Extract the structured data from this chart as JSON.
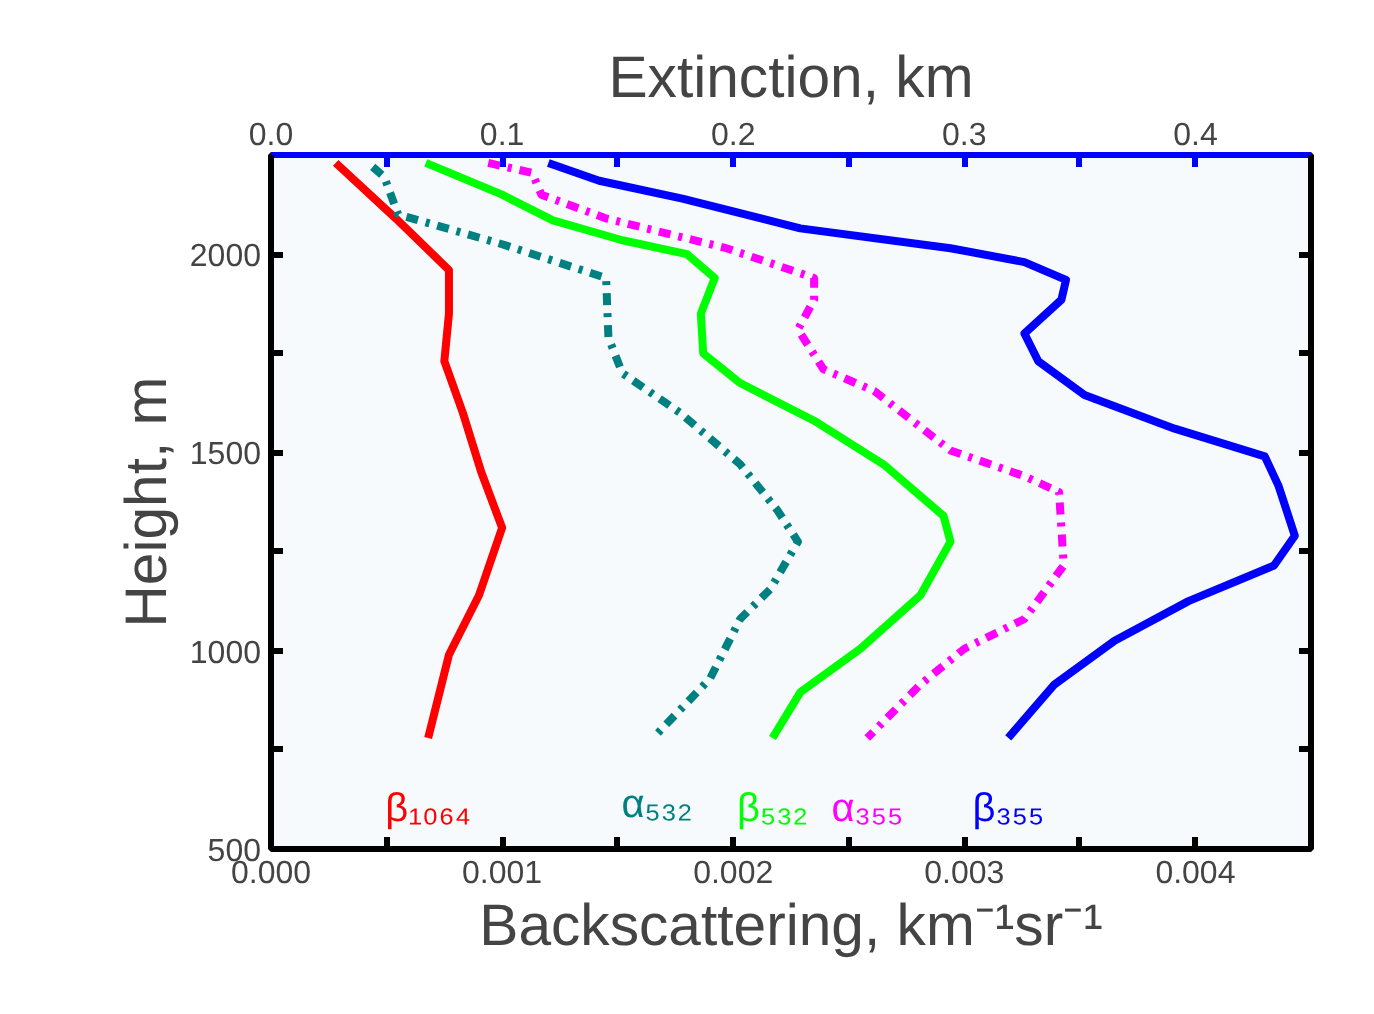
{
  "chart_data": {
    "type": "line",
    "xlabel": "Backscattering, km⁻¹sr⁻¹",
    "ylabel": "Height, m",
    "x2label": "Extinction, km",
    "xlim": [
      0,
      0.0045
    ],
    "x2lim": [
      0,
      0.45
    ],
    "ylim": [
      500,
      2250
    ],
    "xticks": [
      {
        "value": 0,
        "label": "0.000"
      },
      {
        "value": 0.0005,
        "label": null
      },
      {
        "value": 0.001,
        "label": "0.001"
      },
      {
        "value": 0.0015,
        "label": null
      },
      {
        "value": 0.002,
        "label": "0.002"
      },
      {
        "value": 0.0025,
        "label": null
      },
      {
        "value": 0.003,
        "label": "0.003"
      },
      {
        "value": 0.0035,
        "label": null
      },
      {
        "value": 0.004,
        "label": "0.004"
      }
    ],
    "x2ticks": [
      {
        "value": 0,
        "label": "0.0"
      },
      {
        "value": 0.05,
        "label": null
      },
      {
        "value": 0.1,
        "label": "0.1"
      },
      {
        "value": 0.15,
        "label": null
      },
      {
        "value": 0.2,
        "label": "0.2"
      },
      {
        "value": 0.25,
        "label": null
      },
      {
        "value": 0.3,
        "label": "0.3"
      },
      {
        "value": 0.35,
        "label": null
      },
      {
        "value": 0.4,
        "label": "0.4"
      }
    ],
    "yticks": [
      500,
      {
        "value": 750,
        "label": null
      },
      1000,
      {
        "value": 1250,
        "label": null
      },
      1500,
      {
        "value": 1750,
        "label": null
      },
      2000
    ],
    "grid": false,
    "marker": "none",
    "series": [
      {
        "name": "β₁₀₆₄",
        "color": "#ff0000",
        "line_style": "solid",
        "x": [
          0.00028,
          0.00054,
          0.00077,
          0.00077,
          0.00075,
          0.00083,
          0.00091,
          0.001,
          0.0009,
          0.00077,
          0.00068
        ],
        "values": [
          2230,
          2090,
          1960,
          1850,
          1730,
          1600,
          1450,
          1310,
          1140,
          990,
          780
        ]
      },
      {
        "name": "α₅₃₂",
        "color": "#008080",
        "line_style": "dashdot",
        "axis": "x2",
        "x": [
          0.044,
          0.049,
          0.055,
          0.1,
          0.145,
          0.146,
          0.152,
          0.177,
          0.203,
          0.219,
          0.228,
          0.216,
          0.203,
          0.19,
          0.167
        ],
        "values": [
          2220,
          2195,
          2100,
          2025,
          1940,
          1790,
          1700,
          1600,
          1470,
          1355,
          1275,
          1155,
          1080,
          930,
          790
        ]
      },
      {
        "name": "β₅₃₂",
        "color": "#00ff00",
        "line_style": "solid",
        "x": [
          0.00067,
          0.001,
          0.00122,
          0.00152,
          0.0018,
          0.00192,
          0.00186,
          0.00187,
          0.00203,
          0.00235,
          0.00265,
          0.00291,
          0.00294,
          0.00281,
          0.00255,
          0.00229,
          0.00217
        ],
        "values": [
          2230,
          2150,
          2085,
          2035,
          2000,
          1940,
          1850,
          1750,
          1675,
          1580,
          1470,
          1340,
          1275,
          1140,
          1005,
          895,
          780
        ]
      },
      {
        "name": "α₃₅₅",
        "color": "#ff00ff",
        "line_style": "dashdot",
        "axis": "x2",
        "x": [
          0.094,
          0.113,
          0.117,
          0.145,
          0.197,
          0.235,
          0.235,
          0.228,
          0.239,
          0.261,
          0.294,
          0.326,
          0.341,
          0.343,
          0.326,
          0.3,
          0.281,
          0.258
        ],
        "values": [
          2230,
          2205,
          2150,
          2090,
          2015,
          1940,
          1885,
          1810,
          1710,
          1655,
          1505,
          1440,
          1400,
          1215,
          1080,
          1005,
          915,
          780
        ]
      },
      {
        "name": "β₃₅₅",
        "color": "#0000ff",
        "line_style": "solid",
        "x": [
          0.0012,
          0.00142,
          0.00178,
          0.00229,
          0.00294,
          0.00326,
          0.00344,
          0.00342,
          0.00326,
          0.00332,
          0.00352,
          0.00391,
          0.0043,
          0.00436,
          0.00443,
          0.00434,
          0.00397,
          0.00365,
          0.00339,
          0.00319
        ],
        "values": [
          2230,
          2185,
          2140,
          2065,
          2015,
          1980,
          1935,
          1885,
          1800,
          1730,
          1645,
          1560,
          1490,
          1415,
          1290,
          1215,
          1125,
          1025,
          915,
          780
        ]
      }
    ]
  }
}
